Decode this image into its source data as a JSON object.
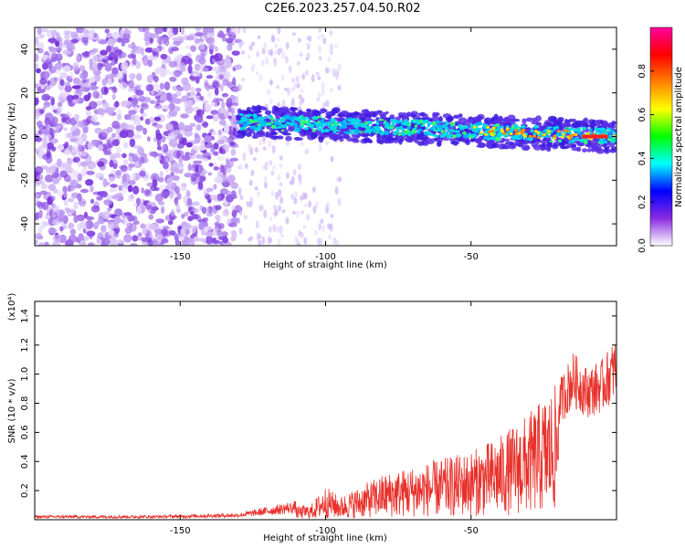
{
  "title": "C2E6.2023.257.04.50.R02",
  "chart_data": [
    {
      "type": "heatmap",
      "xlabel": "Height of straight line (km)",
      "ylabel": "Frequency (Hz)",
      "xlim": [
        -200,
        0
      ],
      "ylim": [
        -50,
        50
      ],
      "xticks": [
        -150,
        -100,
        -50
      ],
      "yticks": [
        -40,
        -20,
        0,
        20,
        40
      ],
      "colorbar": {
        "label": "Normalized spectral amplitude",
        "range": [
          0,
          1
        ],
        "ticks": [
          "0.0",
          "0.2",
          "0.4",
          "0.6",
          "0.8"
        ],
        "colormap": [
          "#ffffff",
          "#8a2be2",
          "#0000ff",
          "#00ffff",
          "#00ff00",
          "#ffff00",
          "#ff8000",
          "#ff0000",
          "#ff00a0"
        ]
      },
      "signal_track": {
        "start_x": -130,
        "end_x": 0,
        "start_freq": 7,
        "end_freq": 0,
        "description_free": ""
      }
    },
    {
      "type": "line",
      "xlabel": "Height of straight line (km)",
      "ylabel": "SNR (10 * v/v)",
      "y_multiplier": "(x10⁴)",
      "xlim": [
        -200,
        0
      ],
      "ylim": [
        0,
        1.5
      ],
      "xticks": [
        -150,
        -100,
        -50
      ],
      "yticks": [
        "0.2",
        "0.4",
        "0.6",
        "0.8",
        "1.0",
        "1.2",
        "1.4"
      ],
      "series": [
        {
          "color": "#e8302a",
          "envelope_x": [
            -200,
            -160,
            -130,
            -120,
            -105,
            -100,
            -95,
            -80,
            -70,
            -60,
            -50,
            -40,
            -30,
            -20,
            -15,
            -10,
            -5,
            0
          ],
          "envelope_y": [
            0.02,
            0.02,
            0.03,
            0.06,
            0.1,
            0.22,
            0.15,
            0.3,
            0.35,
            0.4,
            0.45,
            0.55,
            0.7,
            0.9,
            1.1,
            1.0,
            1.05,
            1.2
          ]
        }
      ]
    }
  ]
}
